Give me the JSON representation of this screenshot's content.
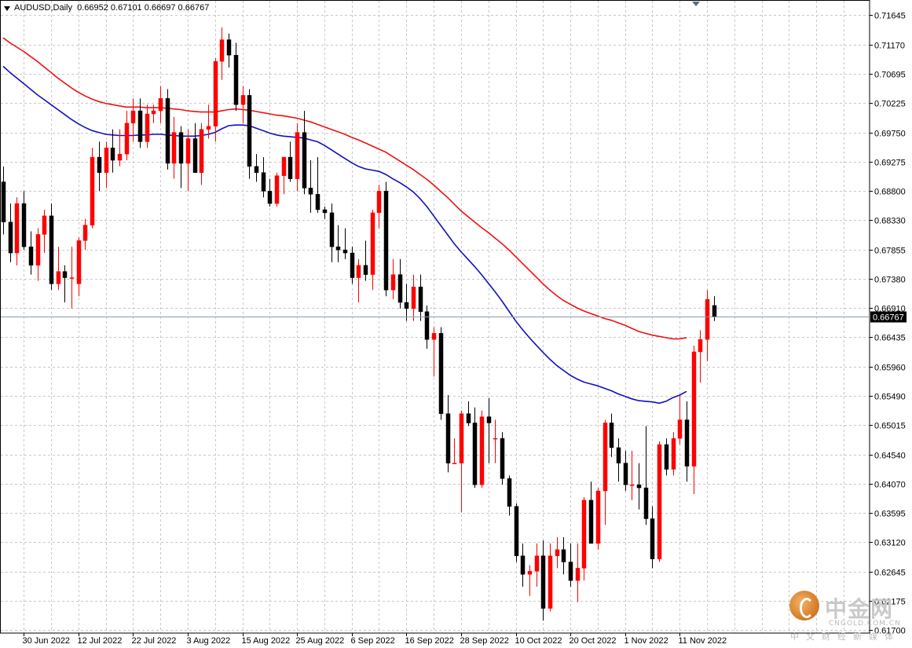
{
  "header": {
    "symbol_label": "AUDUSD,Daily",
    "ohlc_label": "0.66952 0.67101 0.66697 0.66767"
  },
  "current_price_label": "0.66767",
  "watermark": {
    "cn": "中金网",
    "en": "CNGOLD.COM.CN",
    "sub": "中文财经新媒体"
  },
  "chart_data": {
    "type": "candlestick",
    "symbol": "AUDUSD",
    "timeframe": "Daily",
    "ylim": [
      0.6165,
      0.7188
    ],
    "y_ticks": [
      "0.71645",
      "0.71170",
      "0.70695",
      "0.70225",
      "0.69750",
      "0.69275",
      "0.68800",
      "0.68330",
      "0.67855",
      "0.67380",
      "0.66910",
      "0.66435",
      "0.65960",
      "0.65490",
      "0.65015",
      "0.64540",
      "0.64070",
      "0.63595",
      "0.63120",
      "0.62645",
      "0.62175",
      "0.61700"
    ],
    "x_ticks": [
      {
        "index": 3,
        "label": "30 Jun 2022"
      },
      {
        "index": 11,
        "label": "12 Jul 2022"
      },
      {
        "index": 19,
        "label": "22 Jul 2022"
      },
      {
        "index": 27,
        "label": "3 Aug 2022"
      },
      {
        "index": 35,
        "label": "15 Aug 2022"
      },
      {
        "index": 43,
        "label": "25 Aug 2022"
      },
      {
        "index": 51,
        "label": "6 Sep 2022"
      },
      {
        "index": 59,
        "label": "16 Sep 2022"
      },
      {
        "index": 67,
        "label": "28 Sep 2022"
      },
      {
        "index": 75,
        "label": "10 Oct 2022"
      },
      {
        "index": 83,
        "label": "20 Oct 2022"
      },
      {
        "index": 91,
        "label": "1 Nov 2022"
      },
      {
        "index": 99,
        "label": "11 Nov 2022"
      }
    ],
    "candles": [
      [
        0.6895,
        0.692,
        0.681,
        0.683
      ],
      [
        0.683,
        0.686,
        0.6765,
        0.678
      ],
      [
        0.678,
        0.687,
        0.676,
        0.686
      ],
      [
        0.686,
        0.688,
        0.6785,
        0.679
      ],
      [
        0.679,
        0.6815,
        0.6745,
        0.676
      ],
      [
        0.676,
        0.682,
        0.6735,
        0.681
      ],
      [
        0.681,
        0.685,
        0.678,
        0.684
      ],
      [
        0.684,
        0.686,
        0.672,
        0.673
      ],
      [
        0.673,
        0.679,
        0.672,
        0.675
      ],
      [
        0.675,
        0.676,
        0.67,
        0.674
      ],
      [
        0.674,
        0.679,
        0.669,
        0.674
      ],
      [
        0.673,
        0.6805,
        0.671,
        0.68
      ],
      [
        0.68,
        0.6835,
        0.6785,
        0.6825
      ],
      [
        0.6825,
        0.695,
        0.682,
        0.6935
      ],
      [
        0.6935,
        0.696,
        0.688,
        0.691
      ],
      [
        0.691,
        0.696,
        0.6885,
        0.695
      ],
      [
        0.695,
        0.698,
        0.691,
        0.693
      ],
      [
        0.693,
        0.698,
        0.692,
        0.694
      ],
      [
        0.694,
        0.701,
        0.693,
        0.699
      ],
      [
        0.699,
        0.703,
        0.696,
        0.701
      ],
      [
        0.701,
        0.703,
        0.695,
        0.696
      ],
      [
        0.696,
        0.702,
        0.695,
        0.7005
      ],
      [
        0.7005,
        0.702,
        0.699,
        0.701
      ],
      [
        0.701,
        0.705,
        0.699,
        0.703
      ],
      [
        0.703,
        0.7045,
        0.6915,
        0.6925
      ],
      [
        0.6925,
        0.7,
        0.69,
        0.6975
      ],
      [
        0.6975,
        0.6985,
        0.6885,
        0.6925
      ],
      [
        0.6925,
        0.698,
        0.688,
        0.6965
      ],
      [
        0.6965,
        0.699,
        0.691,
        0.691
      ],
      [
        0.691,
        0.699,
        0.689,
        0.698
      ],
      [
        0.698,
        0.702,
        0.6965,
        0.6985
      ],
      [
        0.6985,
        0.7095,
        0.696,
        0.709
      ],
      [
        0.709,
        0.7145,
        0.706,
        0.7125
      ],
      [
        0.7125,
        0.7135,
        0.708,
        0.71
      ],
      [
        0.71,
        0.712,
        0.701,
        0.702
      ],
      [
        0.702,
        0.705,
        0.699,
        0.7035
      ],
      [
        0.7035,
        0.7045,
        0.69,
        0.692
      ],
      [
        0.692,
        0.694,
        0.6895,
        0.691
      ],
      [
        0.691,
        0.6935,
        0.687,
        0.688
      ],
      [
        0.688,
        0.69,
        0.6855,
        0.686
      ],
      [
        0.686,
        0.691,
        0.6855,
        0.6905
      ],
      [
        0.6905,
        0.6935,
        0.6875,
        0.6935
      ],
      [
        0.6935,
        0.696,
        0.6895,
        0.69
      ],
      [
        0.69,
        0.699,
        0.688,
        0.6975
      ],
      [
        0.6975,
        0.701,
        0.6875,
        0.6885
      ],
      [
        0.6885,
        0.693,
        0.6845,
        0.6875
      ],
      [
        0.6875,
        0.6935,
        0.6845,
        0.685
      ],
      [
        0.685,
        0.6855,
        0.6835,
        0.6845
      ],
      [
        0.6845,
        0.686,
        0.6765,
        0.679
      ],
      [
        0.679,
        0.6825,
        0.6765,
        0.6785
      ],
      [
        0.6785,
        0.682,
        0.677,
        0.678
      ],
      [
        0.678,
        0.679,
        0.673,
        0.674
      ],
      [
        0.674,
        0.677,
        0.67,
        0.676
      ],
      [
        0.676,
        0.68,
        0.6735,
        0.6745
      ],
      [
        0.6745,
        0.685,
        0.672,
        0.6845
      ],
      [
        0.6845,
        0.689,
        0.682,
        0.688
      ],
      [
        0.688,
        0.6895,
        0.671,
        0.672
      ],
      [
        0.672,
        0.677,
        0.6705,
        0.6745
      ],
      [
        0.6745,
        0.677,
        0.669,
        0.67
      ],
      [
        0.67,
        0.673,
        0.667,
        0.669
      ],
      [
        0.669,
        0.6745,
        0.667,
        0.6725
      ],
      [
        0.6725,
        0.6745,
        0.667,
        0.6685
      ],
      [
        0.6685,
        0.6695,
        0.6625,
        0.664
      ],
      [
        0.664,
        0.666,
        0.658,
        0.665
      ],
      [
        0.665,
        0.666,
        0.651,
        0.652
      ],
      [
        0.652,
        0.655,
        0.6425,
        0.644
      ],
      [
        0.644,
        0.648,
        0.644,
        0.644
      ],
      [
        0.644,
        0.6525,
        0.636,
        0.652
      ],
      [
        0.652,
        0.654,
        0.65,
        0.6505
      ],
      [
        0.6505,
        0.653,
        0.64,
        0.6405
      ],
      [
        0.6405,
        0.6525,
        0.64,
        0.6515
      ],
      [
        0.6515,
        0.6545,
        0.644,
        0.6505
      ],
      [
        0.648,
        0.651,
        0.644,
        0.648
      ],
      [
        0.648,
        0.649,
        0.6405,
        0.6415
      ],
      [
        0.6415,
        0.642,
        0.6355,
        0.637
      ],
      [
        0.637,
        0.6375,
        0.628,
        0.629
      ],
      [
        0.629,
        0.631,
        0.624,
        0.626
      ],
      [
        0.626,
        0.6275,
        0.6225,
        0.6265
      ],
      [
        0.6265,
        0.631,
        0.624,
        0.629
      ],
      [
        0.629,
        0.6315,
        0.6185,
        0.6205
      ],
      [
        0.6205,
        0.631,
        0.62,
        0.629
      ],
      [
        0.629,
        0.632,
        0.627,
        0.63
      ],
      [
        0.63,
        0.632,
        0.626,
        0.628
      ],
      [
        0.628,
        0.631,
        0.624,
        0.625
      ],
      [
        0.625,
        0.631,
        0.6215,
        0.627
      ],
      [
        0.627,
        0.6385,
        0.625,
        0.638
      ],
      [
        0.638,
        0.641,
        0.631,
        0.631
      ],
      [
        0.631,
        0.64,
        0.63,
        0.6395
      ],
      [
        0.6395,
        0.651,
        0.634,
        0.6505
      ],
      [
        0.6505,
        0.652,
        0.645,
        0.6465
      ],
      [
        0.6465,
        0.648,
        0.641,
        0.644
      ],
      [
        0.644,
        0.646,
        0.6395,
        0.6405
      ],
      [
        0.6405,
        0.646,
        0.638,
        0.6405
      ],
      [
        0.6405,
        0.644,
        0.6365,
        0.64
      ],
      [
        0.64,
        0.65,
        0.634,
        0.635
      ],
      [
        0.635,
        0.637,
        0.627,
        0.6285
      ],
      [
        0.6285,
        0.6475,
        0.628,
        0.647
      ],
      [
        0.647,
        0.648,
        0.642,
        0.643
      ],
      [
        0.643,
        0.649,
        0.642,
        0.648
      ],
      [
        0.648,
        0.655,
        0.647,
        0.651
      ],
      [
        0.651,
        0.654,
        0.641,
        0.6435
      ],
      [
        0.6435,
        0.663,
        0.639,
        0.662
      ],
      [
        0.662,
        0.6655,
        0.657,
        0.664
      ],
      [
        0.664,
        0.672,
        0.6605,
        0.6705
      ],
      [
        0.6695,
        0.671,
        0.667,
        0.66767
      ]
    ],
    "ma_red": [
      0.7128,
      0.712,
      0.7113,
      0.7106,
      0.7098,
      0.709,
      0.7081,
      0.7072,
      0.7063,
      0.7055,
      0.7047,
      0.704,
      0.7034,
      0.7029,
      0.7025,
      0.7022,
      0.702,
      0.7018,
      0.7016,
      0.7016,
      0.7016,
      0.7015,
      0.7015,
      0.7015,
      0.7014,
      0.7013,
      0.7012,
      0.701,
      0.7009,
      0.7008,
      0.7008,
      0.7008,
      0.701,
      0.7012,
      0.7013,
      0.7012,
      0.7011,
      0.7009,
      0.7007,
      0.7005,
      0.7003,
      0.7002,
      0.7,
      0.6998,
      0.6995,
      0.6992,
      0.6988,
      0.6984,
      0.698,
      0.6976,
      0.6972,
      0.6967,
      0.6963,
      0.6958,
      0.6953,
      0.6948,
      0.6943,
      0.6936,
      0.6929,
      0.6922,
      0.6915,
      0.6907,
      0.6899,
      0.689,
      0.688,
      0.687,
      0.6859,
      0.6848,
      0.6839,
      0.683,
      0.6821,
      0.6813,
      0.6804,
      0.6795,
      0.6785,
      0.6774,
      0.6763,
      0.6752,
      0.6741,
      0.673,
      0.672,
      0.6711,
      0.6703,
      0.6697,
      0.6691,
      0.6686,
      0.6682,
      0.6678,
      0.6674,
      0.6671,
      0.6667,
      0.6663,
      0.6658,
      0.6653,
      0.665,
      0.6647,
      0.6645,
      0.6643,
      0.6641,
      0.6641,
      0.6643
    ],
    "ma_blue": [
      0.7082,
      0.7072,
      0.7063,
      0.7054,
      0.7045,
      0.7036,
      0.7028,
      0.702,
      0.7012,
      0.7004,
      0.6996,
      0.6989,
      0.6983,
      0.6978,
      0.6975,
      0.6972,
      0.6971,
      0.697,
      0.697,
      0.697,
      0.6971,
      0.6971,
      0.6972,
      0.6972,
      0.6971,
      0.697,
      0.6969,
      0.6969,
      0.6969,
      0.697,
      0.6972,
      0.6975,
      0.6981,
      0.6986,
      0.6987,
      0.6987,
      0.6986,
      0.6982,
      0.6978,
      0.6974,
      0.6971,
      0.6969,
      0.6968,
      0.6967,
      0.6966,
      0.6963,
      0.696,
      0.6954,
      0.6947,
      0.694,
      0.6933,
      0.6926,
      0.692,
      0.6916,
      0.6914,
      0.6912,
      0.6907,
      0.69,
      0.6894,
      0.6887,
      0.6879,
      0.6868,
      0.6855,
      0.684,
      0.6825,
      0.681,
      0.6795,
      0.6782,
      0.677,
      0.6758,
      0.6745,
      0.6731,
      0.6717,
      0.6702,
      0.6686,
      0.667,
      0.6656,
      0.6643,
      0.6631,
      0.6619,
      0.6608,
      0.6598,
      0.659,
      0.6582,
      0.6576,
      0.6571,
      0.6568,
      0.6565,
      0.6561,
      0.6557,
      0.6552,
      0.6548,
      0.6544,
      0.6541,
      0.654,
      0.6539,
      0.6537,
      0.654,
      0.6546,
      0.655,
      0.6556
    ],
    "current_price": 0.66767,
    "colors": {
      "bull": "#ff0000",
      "bear": "#000000",
      "ma_red": "#ee1111",
      "ma_blue": "#1111bb",
      "grid": "#c8c8c8",
      "axis": "#000000"
    },
    "grid": true
  }
}
